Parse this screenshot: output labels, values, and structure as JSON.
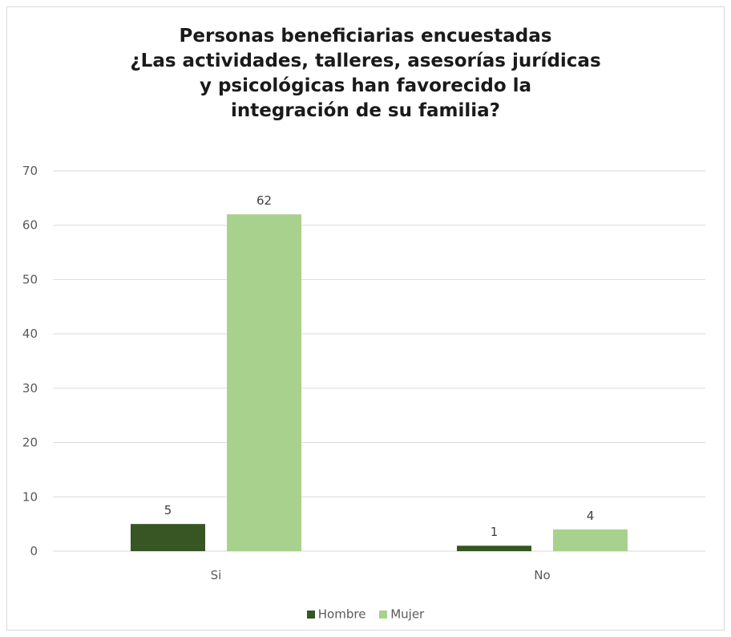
{
  "chart_data": {
    "type": "bar",
    "title_lines": [
      "Personas beneficiarias encuestadas",
      "¿Las actividades, talleres, asesorías jurídicas",
      "y psicológicas han favorecido la",
      "integración de su familia?"
    ],
    "categories": [
      "Si",
      "No"
    ],
    "series": [
      {
        "name": "Hombre",
        "values": [
          5,
          1
        ],
        "color": "#375623"
      },
      {
        "name": "Mujer",
        "values": [
          62,
          4
        ],
        "color": "#a9d18e"
      }
    ],
    "ylim": [
      0,
      70
    ],
    "y_ticks": [
      0,
      10,
      20,
      30,
      40,
      50,
      60,
      70
    ],
    "grid": true,
    "gridline_color": "#d9d9d9",
    "legend_position": "bottom",
    "data_labels": true
  }
}
